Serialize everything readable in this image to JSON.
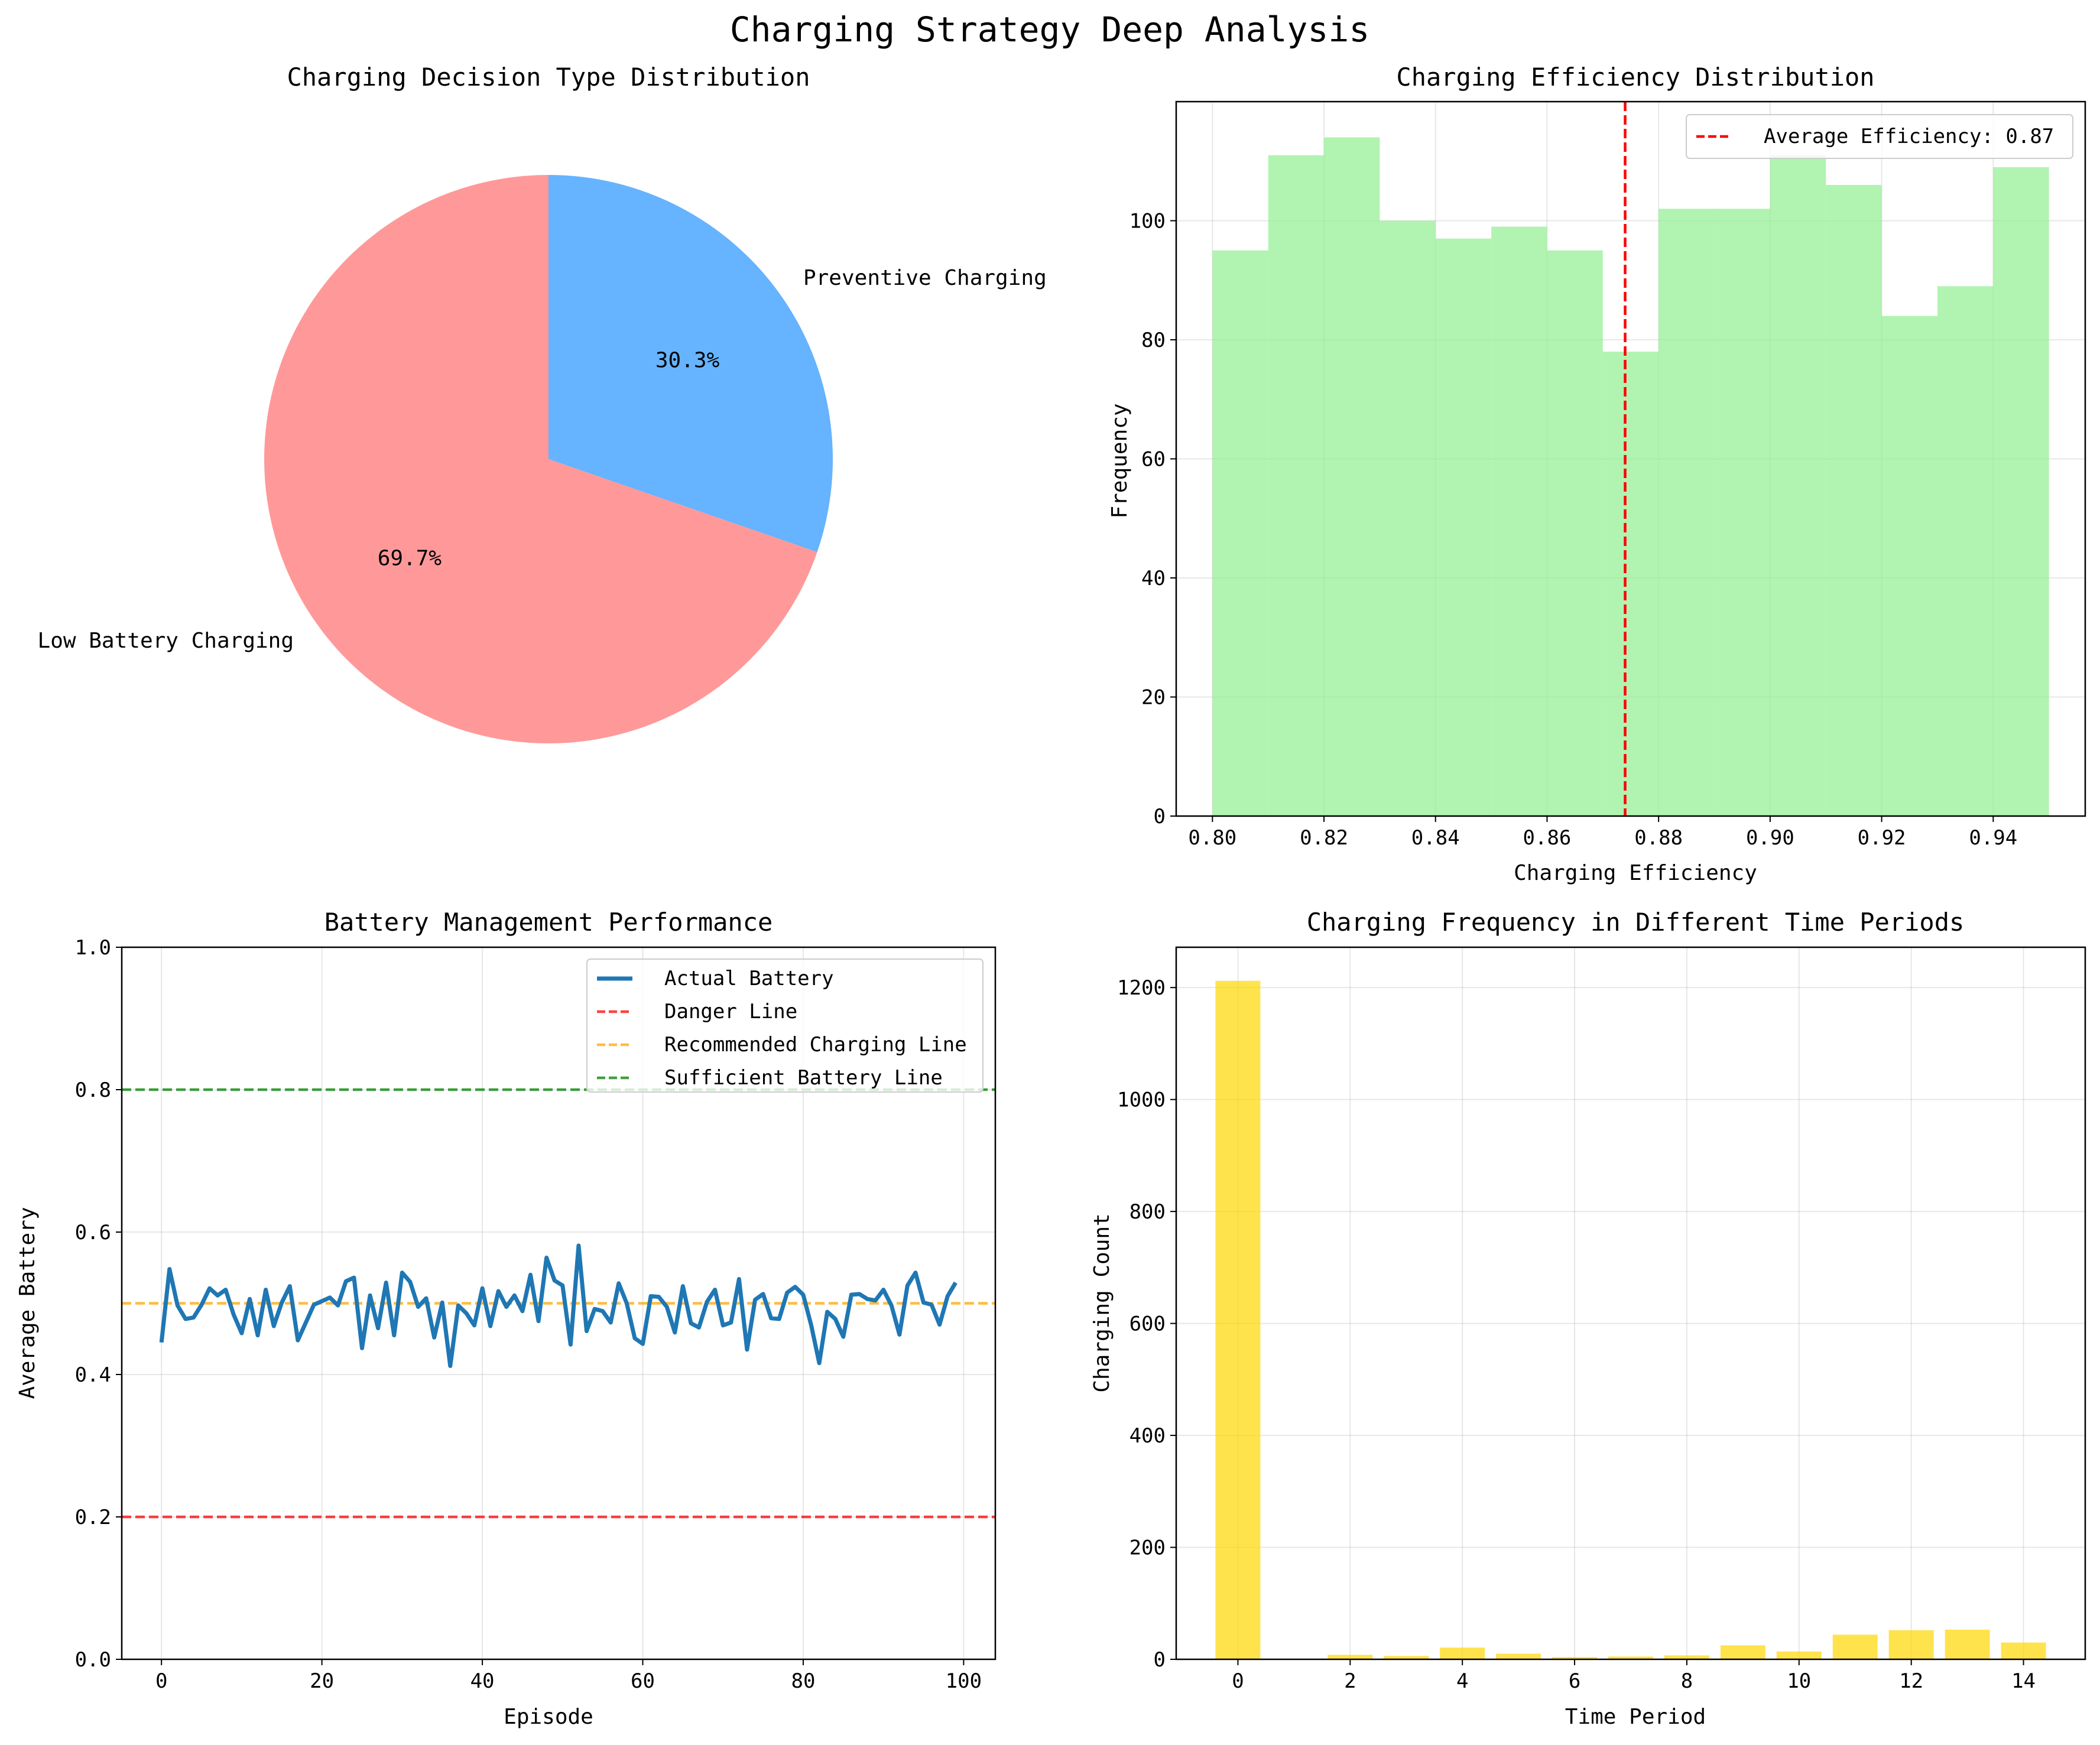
{
  "suptitle": "Charging Strategy Deep Analysis",
  "chart_data": [
    {
      "type": "pie",
      "title": "Charging Decision Type Distribution",
      "labels": [
        "Preventive Charging",
        "Low Battery Charging"
      ],
      "values": [
        30.3,
        69.7
      ],
      "pct_labels": [
        "30.3%",
        "69.7%"
      ],
      "colors": [
        "#66b3ff",
        "#ff9999"
      ],
      "start_angle_deg": 90,
      "direction": "clockwise"
    },
    {
      "type": "bar",
      "subtype": "histogram",
      "title": "Charging Efficiency Distribution",
      "xlabel": "Charging Efficiency",
      "ylabel": "Frequency",
      "bin_edges": [
        0.8,
        0.81,
        0.82,
        0.83,
        0.84,
        0.85,
        0.86,
        0.87,
        0.88,
        0.89,
        0.9,
        0.91,
        0.92,
        0.93,
        0.94,
        0.95
      ],
      "values": [
        95,
        111,
        114,
        100,
        97,
        99,
        95,
        78,
        102,
        102,
        111,
        106,
        84,
        89,
        109
      ],
      "xlim": [
        0.7935,
        0.9565
      ],
      "ylim": [
        0,
        120
      ],
      "xticks": [
        0.8,
        0.82,
        0.84,
        0.86,
        0.88,
        0.9,
        0.92,
        0.94
      ],
      "xtick_labels": [
        "0.80",
        "0.82",
        "0.84",
        "0.86",
        "0.88",
        "0.90",
        "0.92",
        "0.94"
      ],
      "yticks": [
        0,
        20,
        40,
        60,
        80,
        100
      ],
      "ytick_labels": [
        "0",
        "20",
        "40",
        "60",
        "80",
        "100"
      ],
      "bar_color": "#90ee90",
      "mean_line": {
        "x": 0.874,
        "color": "#ff0000"
      },
      "legend": [
        "Average Efficiency: 0.87"
      ],
      "legend_position": "upper right",
      "grid": true
    },
    {
      "type": "line",
      "title": "Battery Management Performance",
      "xlabel": "Episode",
      "ylabel": "Average Battery",
      "xlim": [
        -4.95,
        103.95
      ],
      "ylim": [
        0,
        1
      ],
      "xticks": [
        0,
        20,
        40,
        60,
        80,
        100
      ],
      "xtick_labels": [
        "0",
        "20",
        "40",
        "60",
        "80",
        "100"
      ],
      "yticks": [
        0,
        0.2,
        0.4,
        0.6,
        0.8,
        1.0
      ],
      "ytick_labels": [
        "0.0",
        "0.2",
        "0.4",
        "0.6",
        "0.8",
        "1.0"
      ],
      "series": [
        {
          "name": "Actual Battery",
          "color": "#1f77b4",
          "x": [
            0,
            1,
            2,
            3,
            4,
            5,
            6,
            7,
            8,
            9,
            10,
            11,
            12,
            13,
            14,
            15,
            16,
            17,
            18,
            19,
            20,
            21,
            22,
            23,
            24,
            25,
            26,
            27,
            28,
            29,
            30,
            31,
            32,
            33,
            34,
            35,
            36,
            37,
            38,
            39,
            40,
            41,
            42,
            43,
            44,
            45,
            46,
            47,
            48,
            49,
            50,
            51,
            52,
            53,
            54,
            55,
            56,
            57,
            58,
            59,
            60,
            61,
            62,
            63,
            64,
            65,
            66,
            67,
            68,
            69,
            70,
            71,
            72,
            73,
            74,
            75,
            76,
            77,
            78,
            79,
            80,
            81,
            82,
            83,
            84,
            85,
            86,
            87,
            88,
            89,
            90,
            91,
            92,
            93,
            94,
            95,
            96,
            97,
            98,
            99
          ],
          "values": [
            0.445,
            0.548,
            0.497,
            0.478,
            0.48,
            0.498,
            0.521,
            0.511,
            0.519,
            0.484,
            0.458,
            0.506,
            0.455,
            0.519,
            0.468,
            0.501,
            0.524,
            0.448,
            0.473,
            0.498,
            0.503,
            0.508,
            0.497,
            0.531,
            0.536,
            0.437,
            0.511,
            0.465,
            0.529,
            0.455,
            0.543,
            0.53,
            0.495,
            0.507,
            0.452,
            0.501,
            0.412,
            0.497,
            0.486,
            0.469,
            0.521,
            0.468,
            0.517,
            0.495,
            0.511,
            0.489,
            0.54,
            0.475,
            0.564,
            0.532,
            0.525,
            0.442,
            0.581,
            0.461,
            0.492,
            0.489,
            0.473,
            0.528,
            0.5,
            0.451,
            0.443,
            0.51,
            0.509,
            0.495,
            0.459,
            0.524,
            0.472,
            0.466,
            0.502,
            0.519,
            0.469,
            0.473,
            0.534,
            0.435,
            0.505,
            0.513,
            0.479,
            0.478,
            0.515,
            0.523,
            0.512,
            0.469,
            0.416,
            0.488,
            0.478,
            0.453,
            0.512,
            0.513,
            0.506,
            0.504,
            0.519,
            0.497,
            0.456,
            0.525,
            0.543,
            0.501,
            0.498,
            0.47,
            0.51,
            0.529
          ],
          "linestyle": "solid"
        },
        {
          "name": "Danger Line",
          "color": "#ff0000",
          "y": 0.2,
          "linestyle": "dashed"
        },
        {
          "name": "Recommended Charging Line",
          "color": "#ffa500",
          "y": 0.5,
          "linestyle": "dashed"
        },
        {
          "name": "Sufficient Battery Line",
          "color": "#008000",
          "y": 0.8,
          "linestyle": "dashed"
        }
      ],
      "legend_position": "upper right",
      "grid": true
    },
    {
      "type": "bar",
      "title": "Charging Frequency in Different Time Periods",
      "xlabel": "Time Period",
      "ylabel": "Charging Count",
      "categories": [
        0,
        1,
        2,
        3,
        4,
        5,
        6,
        7,
        8,
        9,
        10,
        11,
        12,
        13,
        14
      ],
      "values": [
        1212,
        0,
        8,
        6,
        21,
        10,
        4,
        5,
        7,
        25,
        14,
        44,
        52,
        53,
        30
      ],
      "xlim": [
        -1.1,
        15.1
      ],
      "ylim": [
        0,
        1272
      ],
      "xticks": [
        0,
        2,
        4,
        6,
        8,
        10,
        12,
        14
      ],
      "xtick_labels": [
        "0",
        "2",
        "4",
        "6",
        "8",
        "10",
        "12",
        "14"
      ],
      "yticks": [
        0,
        200,
        400,
        600,
        800,
        1000,
        1200
      ],
      "ytick_labels": [
        "0",
        "200",
        "400",
        "600",
        "800",
        "1000",
        "1200"
      ],
      "bar_color": "#ffd700",
      "grid": true
    }
  ]
}
